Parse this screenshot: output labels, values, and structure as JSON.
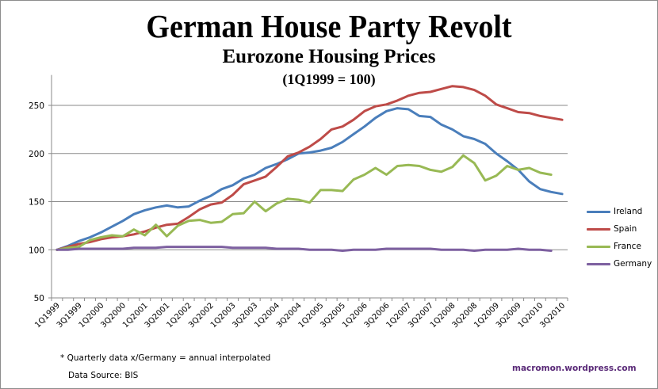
{
  "chart_data": {
    "type": "line",
    "title": "German House Party Revolt",
    "subtitle": "Eurozone Housing Prices",
    "subtitle2": "(1Q1999 = 100)",
    "xlabel": "",
    "ylabel": "",
    "ylim": [
      50,
      275
    ],
    "yticks": [
      50,
      100,
      150,
      200,
      250
    ],
    "grid": true,
    "legend_position": "right",
    "categories": [
      "1Q1999",
      "2Q1999",
      "3Q1999",
      "4Q1999",
      "1Q2000",
      "2Q2000",
      "3Q2000",
      "4Q2000",
      "1Q2001",
      "2Q2001",
      "3Q2001",
      "4Q2001",
      "1Q2002",
      "2Q2002",
      "3Q2002",
      "4Q2002",
      "1Q2003",
      "2Q2003",
      "3Q2003",
      "4Q2003",
      "1Q2004",
      "2Q2004",
      "3Q2004",
      "4Q2004",
      "1Q2005",
      "2Q2005",
      "3Q2005",
      "4Q2005",
      "1Q2006",
      "2Q2006",
      "3Q2006",
      "4Q2006",
      "1Q2007",
      "2Q2007",
      "3Q2007",
      "4Q2007",
      "1Q2008",
      "2Q2008",
      "3Q2008",
      "4Q2008",
      "1Q2009",
      "2Q2009",
      "3Q2009",
      "4Q2009",
      "1Q2010",
      "2Q2010",
      "3Q2010"
    ],
    "tick_labels": [
      "1Q1999",
      "3Q1999",
      "1Q2000",
      "3Q2000",
      "1Q2001",
      "3Q2001",
      "1Q2002",
      "3Q2002",
      "1Q2003",
      "3Q2003",
      "1Q2004",
      "3Q2004",
      "1Q2005",
      "3Q2005",
      "1Q2006",
      "3Q2006",
      "1Q2007",
      "3Q2007",
      "1Q2008",
      "3Q2008",
      "1Q2009",
      "3Q2009",
      "1Q2010",
      "3Q2010"
    ],
    "series": [
      {
        "name": "Ireland",
        "color": "#4a7ebb",
        "values": [
          100,
          104,
          109,
          113,
          118,
          124,
          130,
          137,
          141,
          144,
          146,
          144,
          145,
          151,
          156,
          163,
          167,
          174,
          178,
          185,
          189,
          194,
          200,
          201,
          203,
          206,
          212,
          220,
          228,
          237,
          244,
          247,
          246,
          239,
          238,
          230,
          225,
          218,
          215,
          210,
          200,
          192,
          183,
          171,
          163,
          160,
          158
        ]
      },
      {
        "name": "Spain",
        "color": "#be4b48",
        "values": [
          100,
          103,
          106,
          108,
          111,
          113,
          114,
          116,
          119,
          123,
          126,
          127,
          134,
          142,
          147,
          149,
          157,
          168,
          172,
          176,
          186,
          197,
          201,
          207,
          215,
          225,
          228,
          235,
          244,
          249,
          251,
          255,
          260,
          263,
          264,
          267,
          270,
          269,
          266,
          260,
          251,
          247,
          243,
          242,
          239,
          237,
          235
        ]
      },
      {
        "name": "France",
        "color": "#98b954",
        "values": [
          100,
          102,
          103,
          110,
          113,
          115,
          114,
          121,
          115,
          126,
          114,
          125,
          130,
          131,
          128,
          129,
          137,
          138,
          150,
          140,
          148,
          153,
          152,
          149,
          162,
          162,
          161,
          173,
          178,
          185,
          178,
          187,
          188,
          187,
          183,
          181,
          186,
          198,
          190,
          172,
          177,
          187,
          183,
          185,
          180,
          178,
          null
        ]
      },
      {
        "name": "Germany",
        "color": "#7d60a0",
        "values": [
          100,
          100,
          101,
          101,
          101,
          101,
          101,
          102,
          102,
          102,
          103,
          103,
          103,
          103,
          103,
          103,
          102,
          102,
          102,
          102,
          101,
          101,
          101,
          100,
          100,
          100,
          99,
          100,
          100,
          100,
          101,
          101,
          101,
          101,
          101,
          100,
          100,
          100,
          99,
          100,
          100,
          100,
          101,
          100,
          100,
          99,
          null
        ]
      }
    ],
    "annotations": [
      "* Quarterly data x/Germany = annual interpolated",
      "Data Source:  BIS",
      "macromon.wordpress.com"
    ]
  },
  "footnote": {
    "note1": "* Quarterly data x/Germany = annual interpolated",
    "note2": "Data Source:  BIS"
  },
  "watermark": "macromon.wordpress.com"
}
